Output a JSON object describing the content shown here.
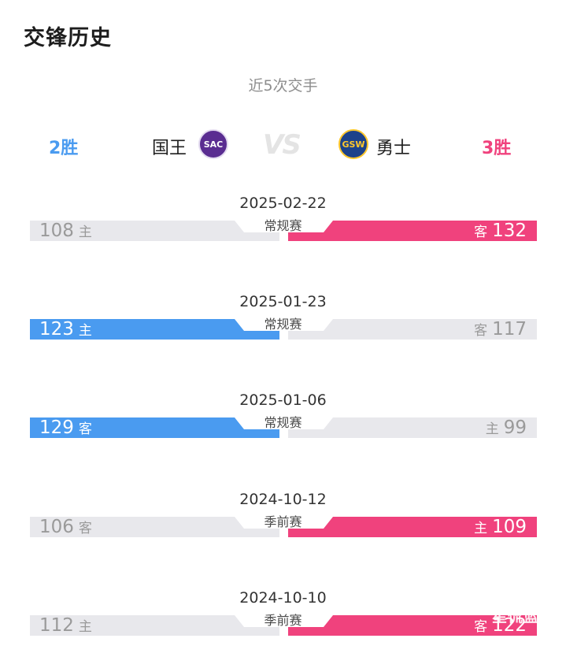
{
  "page": {
    "title": "交锋历史",
    "subtitle": "近5次交手"
  },
  "colors": {
    "home_team_win": "#4a9bf0",
    "away_team_win": "#f0427d",
    "lose_bar": "#e8e8ec"
  },
  "teams": {
    "left": {
      "name": "国王",
      "logo_text": "SAC",
      "wins": "2胜"
    },
    "vs": "VS",
    "right": {
      "name": "勇士",
      "logo_text": "GSW",
      "wins": "3胜"
    }
  },
  "games": [
    {
      "date": "2025-02-22",
      "type": "常规赛",
      "left_score": "108",
      "left_side": "主",
      "right_score": "132",
      "right_side": "客",
      "winner": "right"
    },
    {
      "date": "2025-01-23",
      "type": "常规赛",
      "left_score": "123",
      "left_side": "主",
      "right_score": "117",
      "right_side": "客",
      "winner": "left"
    },
    {
      "date": "2025-01-06",
      "type": "常规赛",
      "left_score": "129",
      "left_side": "客",
      "right_score": "99",
      "right_side": "主",
      "winner": "left"
    },
    {
      "date": "2024-10-12",
      "type": "季前赛",
      "left_score": "106",
      "left_side": "客",
      "right_score": "109",
      "right_side": "主",
      "winner": "right"
    },
    {
      "date": "2024-10-10",
      "type": "季前赛",
      "left_score": "112",
      "left_side": "主",
      "right_score": "122",
      "right_side": "客",
      "winner": "right"
    }
  ],
  "watermark": "星侃篮球"
}
